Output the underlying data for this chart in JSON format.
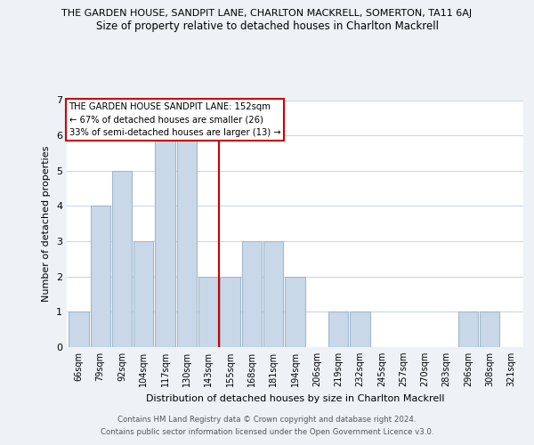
{
  "title_top": "THE GARDEN HOUSE, SANDPIT LANE, CHARLTON MACKRELL, SOMERTON, TA11 6AJ",
  "title_sub": "Size of property relative to detached houses in Charlton Mackrell",
  "xlabel": "Distribution of detached houses by size in Charlton Mackrell",
  "ylabel": "Number of detached properties",
  "bin_labels": [
    "66sqm",
    "79sqm",
    "92sqm",
    "104sqm",
    "117sqm",
    "130sqm",
    "143sqm",
    "155sqm",
    "168sqm",
    "181sqm",
    "194sqm",
    "206sqm",
    "219sqm",
    "232sqm",
    "245sqm",
    "257sqm",
    "270sqm",
    "283sqm",
    "296sqm",
    "308sqm",
    "321sqm"
  ],
  "bar_heights": [
    1,
    4,
    5,
    3,
    6,
    6,
    2,
    2,
    3,
    3,
    2,
    0,
    1,
    1,
    0,
    0,
    0,
    0,
    1,
    1,
    0
  ],
  "bar_color": "#c8d8e8",
  "bar_edge_color": "#a0b8cc",
  "vline_color": "#cc0000",
  "ylim": [
    0,
    7
  ],
  "yticks": [
    0,
    1,
    2,
    3,
    4,
    5,
    6,
    7
  ],
  "annotation_lines": [
    "THE GARDEN HOUSE SANDPIT LANE: 152sqm",
    "← 67% of detached houses are smaller (26)",
    "33% of semi-detached houses are larger (13) →"
  ],
  "footer1": "Contains HM Land Registry data © Crown copyright and database right 2024.",
  "footer2": "Contains public sector information licensed under the Open Government Licence v3.0.",
  "bg_color": "#eef2f7",
  "plot_bg_color": "#ffffff",
  "grid_color": "#c8d4e0"
}
